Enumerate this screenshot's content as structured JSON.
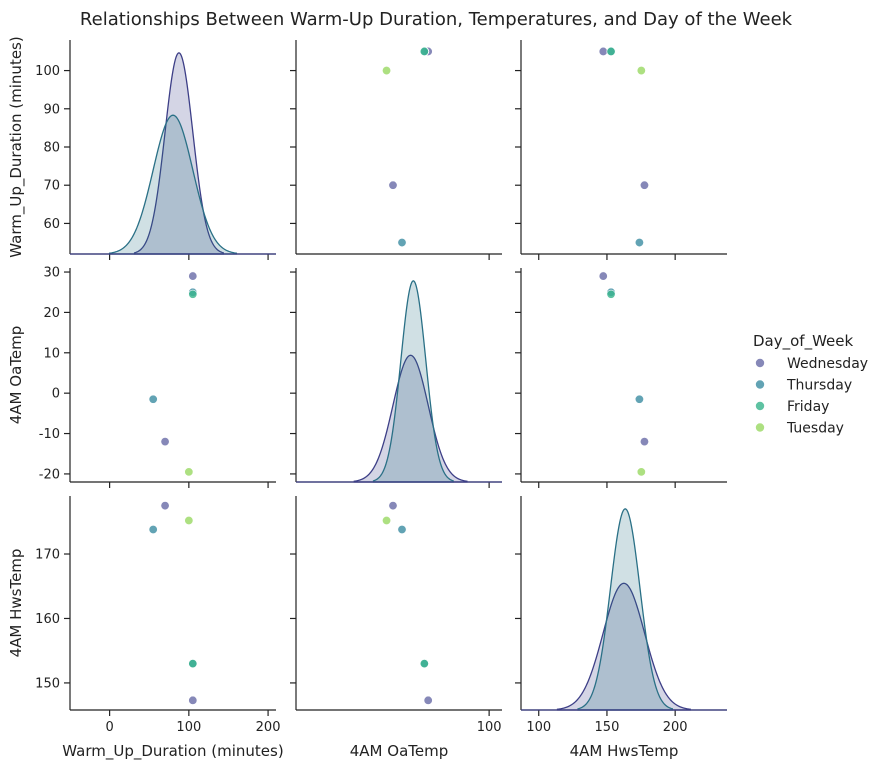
{
  "chart_data": {
    "type": "scatter",
    "title": "Relationships Between Warm-Up Duration, Temperatures, and Day of the Week",
    "variables": [
      "Warm_Up_Duration (minutes)",
      "4AM OaTemp",
      "4AM HwsTemp"
    ],
    "hue": "Day_of_Week",
    "legend": {
      "title": "Day_of_Week",
      "placement": "right",
      "entries": [
        "Wednesday",
        "Thursday",
        "Friday",
        "Tuesday"
      ]
    },
    "colors": {
      "Wednesday": "#6b6ea8",
      "Thursday": "#3f8fa4",
      "Friday": "#3ab48e",
      "Tuesday": "#9bd965"
    },
    "kde_colors": {
      "Wednesday": "#3d3f87",
      "Thursday": "#2a7086"
    },
    "points": [
      {
        "day": "Wednesday",
        "warm_up": 70,
        "oa_temp": -12,
        "hws_temp": 177.5
      },
      {
        "day": "Wednesday",
        "warm_up": 105,
        "oa_temp": 29,
        "hws_temp": 147.3
      },
      {
        "day": "Thursday",
        "warm_up": 55,
        "oa_temp": -1.5,
        "hws_temp": 173.8
      },
      {
        "day": "Thursday",
        "warm_up": 105,
        "oa_temp": 25,
        "hws_temp": 153
      },
      {
        "day": "Friday",
        "warm_up": 105,
        "oa_temp": 24.5,
        "hws_temp": 153
      },
      {
        "day": "Tuesday",
        "warm_up": 100,
        "oa_temp": -19.5,
        "hws_temp": 175.2
      }
    ],
    "axes": {
      "warm_up": {
        "label": "Warm_Up_Duration (minutes)",
        "diag_range": [
          -50,
          210
        ],
        "offdiag_range": [
          52,
          108
        ],
        "ticks_bottom": [
          0,
          100,
          200
        ],
        "ticks_left": [
          60,
          70,
          80,
          90,
          100
        ]
      },
      "oa_temp": {
        "label": "4AM OaTemp",
        "range": [
          -22,
          31
        ],
        "diag_range": [
          -125,
          115
        ],
        "ticks_bottom": [
          100
        ],
        "ticks_left": [
          -20,
          -10,
          0,
          10,
          20,
          30
        ]
      },
      "hws_temp": {
        "label": "4AM HwsTemp",
        "range": [
          145.8,
          179
        ],
        "diag_range": [
          87,
          238
        ],
        "ticks_bottom": [
          100,
          150,
          200
        ],
        "ticks_left": [
          150,
          160,
          170
        ]
      }
    },
    "grid": false
  }
}
